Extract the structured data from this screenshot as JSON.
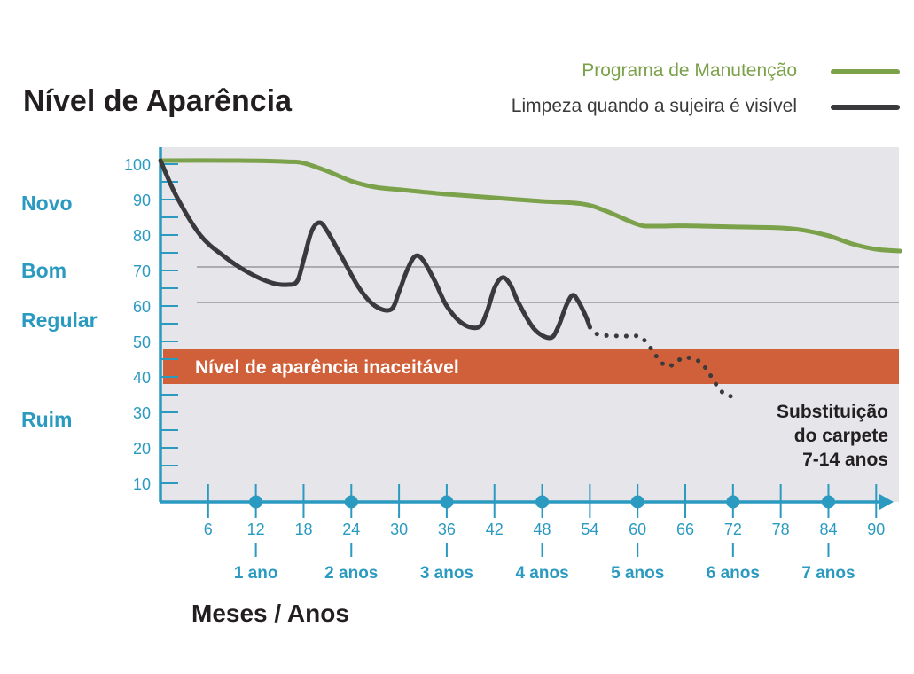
{
  "title": "Nível de Aparência",
  "legend": [
    {
      "label": "Programa de Manutenção",
      "color": "#7ba14a"
    },
    {
      "label": "Limpeza quando a sujeira é visível",
      "color": "#3a3a3c"
    }
  ],
  "quality_levels": [
    {
      "label": "Novo",
      "y": 89
    },
    {
      "label": "Bom",
      "y": 70
    },
    {
      "label": "Regular",
      "y": 56
    },
    {
      "label": "Ruim",
      "y": 28
    }
  ],
  "unacceptable_band": {
    "label": "Nível de aparência inaceitável",
    "y_from": 38,
    "y_to": 48,
    "color": "#d0603a"
  },
  "replacement_note": [
    "Substituição",
    "do carpete",
    "7-14 anos"
  ],
  "x_axis_title": "Meses / Anos",
  "year_labels": [
    {
      "x": 12,
      "label": "1 ano"
    },
    {
      "x": 24,
      "label": "2 anos"
    },
    {
      "x": 36,
      "label": "3 anos"
    },
    {
      "x": 48,
      "label": "4 anos"
    },
    {
      "x": 60,
      "label": "5 anos"
    },
    {
      "x": 72,
      "label": "6 anos"
    },
    {
      "x": 84,
      "label": "7 anos"
    }
  ],
  "chart_data": {
    "type": "line",
    "title": "Nível de Aparência",
    "xlabel": "Meses / Anos",
    "ylabel": "",
    "xlim": [
      0,
      93
    ],
    "ylim": [
      5,
      103
    ],
    "xticks": [
      6,
      12,
      18,
      24,
      30,
      36,
      42,
      48,
      54,
      60,
      66,
      72,
      78,
      84,
      90
    ],
    "yticks": [
      10,
      20,
      30,
      40,
      50,
      60,
      70,
      80,
      90,
      100
    ],
    "reference_lines": [
      71,
      61
    ],
    "series": [
      {
        "name": "Programa de Manutenção",
        "color": "#7ba14a",
        "style": "solid",
        "x": [
          0,
          10,
          16,
          18,
          21,
          24,
          27,
          30,
          36,
          42,
          48,
          53,
          56,
          60,
          62,
          66,
          72,
          78,
          81,
          84,
          87,
          90,
          93
        ],
        "y": [
          101,
          101,
          100.7,
          100.3,
          98,
          95.2,
          93.5,
          92.8,
          91.5,
          90.5,
          89.5,
          88.8,
          86.8,
          83,
          82.5,
          82.6,
          82.3,
          82,
          81.3,
          79.8,
          77.5,
          76,
          75.5
        ]
      },
      {
        "name": "Limpeza quando a sujeira é visível",
        "color": "#3a3a3c",
        "style": "solid",
        "x": [
          0,
          2,
          5,
          8,
          11,
          14,
          16,
          17.2,
          18,
          19,
          20,
          21,
          23,
          25,
          27,
          29,
          30,
          31,
          32,
          33,
          34.5,
          36,
          38,
          40,
          41,
          42,
          43,
          44,
          45,
          47,
          49,
          50,
          51,
          51.8,
          52.5,
          53.5,
          54
        ],
        "y": [
          101,
          91,
          80,
          74,
          69.5,
          66.5,
          66,
          67,
          73,
          81,
          83.5,
          81,
          73,
          65,
          60,
          59,
          64,
          70,
          74,
          73,
          67,
          60,
          55,
          54,
          58,
          65,
          68,
          66,
          61,
          53.5,
          51,
          54,
          60,
          63,
          61.5,
          57,
          54
        ]
      },
      {
        "name": "",
        "color": "#3a3a3c",
        "style": "dotted",
        "x": [
          54,
          55,
          58,
          60,
          61,
          62,
          63,
          64,
          65,
          66,
          67,
          68,
          69,
          70,
          71,
          72
        ],
        "y": [
          54,
          52,
          51.5,
          51.5,
          50,
          47,
          44,
          43,
          44.5,
          45.5,
          45,
          44,
          41,
          37.5,
          35,
          34.5
        ]
      }
    ]
  }
}
